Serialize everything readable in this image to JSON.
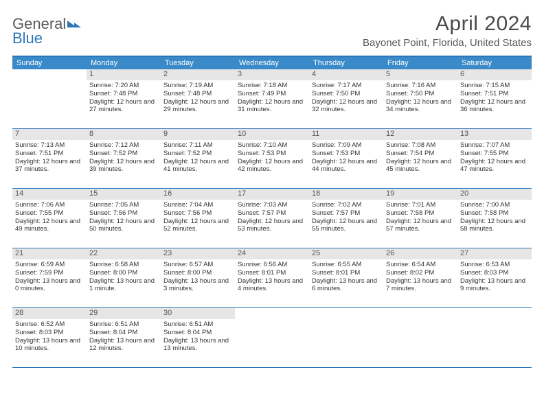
{
  "logo": {
    "word1": "General",
    "word2": "Blue"
  },
  "title": "April 2024",
  "location": "Bayonet Point, Florida, United States",
  "colors": {
    "header_band": "#3a8ac9",
    "border": "#2a76b8",
    "daynum_bg": "#e6e6e6",
    "text": "#333333",
    "logo_gray": "#5a5a5a"
  },
  "dow": [
    "Sunday",
    "Monday",
    "Tuesday",
    "Wednesday",
    "Thursday",
    "Friday",
    "Saturday"
  ],
  "weeks": [
    [
      {
        "n": "",
        "lines": []
      },
      {
        "n": "1",
        "lines": [
          "Sunrise: 7:20 AM",
          "Sunset: 7:48 PM",
          "Daylight: 12 hours and 27 minutes."
        ]
      },
      {
        "n": "2",
        "lines": [
          "Sunrise: 7:19 AM",
          "Sunset: 7:48 PM",
          "Daylight: 12 hours and 29 minutes."
        ]
      },
      {
        "n": "3",
        "lines": [
          "Sunrise: 7:18 AM",
          "Sunset: 7:49 PM",
          "Daylight: 12 hours and 31 minutes."
        ]
      },
      {
        "n": "4",
        "lines": [
          "Sunrise: 7:17 AM",
          "Sunset: 7:50 PM",
          "Daylight: 12 hours and 32 minutes."
        ]
      },
      {
        "n": "5",
        "lines": [
          "Sunrise: 7:16 AM",
          "Sunset: 7:50 PM",
          "Daylight: 12 hours and 34 minutes."
        ]
      },
      {
        "n": "6",
        "lines": [
          "Sunrise: 7:15 AM",
          "Sunset: 7:51 PM",
          "Daylight: 12 hours and 36 minutes."
        ]
      }
    ],
    [
      {
        "n": "7",
        "lines": [
          "Sunrise: 7:13 AM",
          "Sunset: 7:51 PM",
          "Daylight: 12 hours and 37 minutes."
        ]
      },
      {
        "n": "8",
        "lines": [
          "Sunrise: 7:12 AM",
          "Sunset: 7:52 PM",
          "Daylight: 12 hours and 39 minutes."
        ]
      },
      {
        "n": "9",
        "lines": [
          "Sunrise: 7:11 AM",
          "Sunset: 7:52 PM",
          "Daylight: 12 hours and 41 minutes."
        ]
      },
      {
        "n": "10",
        "lines": [
          "Sunrise: 7:10 AM",
          "Sunset: 7:53 PM",
          "Daylight: 12 hours and 42 minutes."
        ]
      },
      {
        "n": "11",
        "lines": [
          "Sunrise: 7:09 AM",
          "Sunset: 7:53 PM",
          "Daylight: 12 hours and 44 minutes."
        ]
      },
      {
        "n": "12",
        "lines": [
          "Sunrise: 7:08 AM",
          "Sunset: 7:54 PM",
          "Daylight: 12 hours and 45 minutes."
        ]
      },
      {
        "n": "13",
        "lines": [
          "Sunrise: 7:07 AM",
          "Sunset: 7:55 PM",
          "Daylight: 12 hours and 47 minutes."
        ]
      }
    ],
    [
      {
        "n": "14",
        "lines": [
          "Sunrise: 7:06 AM",
          "Sunset: 7:55 PM",
          "Daylight: 12 hours and 49 minutes."
        ]
      },
      {
        "n": "15",
        "lines": [
          "Sunrise: 7:05 AM",
          "Sunset: 7:56 PM",
          "Daylight: 12 hours and 50 minutes."
        ]
      },
      {
        "n": "16",
        "lines": [
          "Sunrise: 7:04 AM",
          "Sunset: 7:56 PM",
          "Daylight: 12 hours and 52 minutes."
        ]
      },
      {
        "n": "17",
        "lines": [
          "Sunrise: 7:03 AM",
          "Sunset: 7:57 PM",
          "Daylight: 12 hours and 53 minutes."
        ]
      },
      {
        "n": "18",
        "lines": [
          "Sunrise: 7:02 AM",
          "Sunset: 7:57 PM",
          "Daylight: 12 hours and 55 minutes."
        ]
      },
      {
        "n": "19",
        "lines": [
          "Sunrise: 7:01 AM",
          "Sunset: 7:58 PM",
          "Daylight: 12 hours and 57 minutes."
        ]
      },
      {
        "n": "20",
        "lines": [
          "Sunrise: 7:00 AM",
          "Sunset: 7:58 PM",
          "Daylight: 12 hours and 58 minutes."
        ]
      }
    ],
    [
      {
        "n": "21",
        "lines": [
          "Sunrise: 6:59 AM",
          "Sunset: 7:59 PM",
          "Daylight: 13 hours and 0 minutes."
        ]
      },
      {
        "n": "22",
        "lines": [
          "Sunrise: 6:58 AM",
          "Sunset: 8:00 PM",
          "Daylight: 13 hours and 1 minute."
        ]
      },
      {
        "n": "23",
        "lines": [
          "Sunrise: 6:57 AM",
          "Sunset: 8:00 PM",
          "Daylight: 13 hours and 3 minutes."
        ]
      },
      {
        "n": "24",
        "lines": [
          "Sunrise: 6:56 AM",
          "Sunset: 8:01 PM",
          "Daylight: 13 hours and 4 minutes."
        ]
      },
      {
        "n": "25",
        "lines": [
          "Sunrise: 6:55 AM",
          "Sunset: 8:01 PM",
          "Daylight: 13 hours and 6 minutes."
        ]
      },
      {
        "n": "26",
        "lines": [
          "Sunrise: 6:54 AM",
          "Sunset: 8:02 PM",
          "Daylight: 13 hours and 7 minutes."
        ]
      },
      {
        "n": "27",
        "lines": [
          "Sunrise: 6:53 AM",
          "Sunset: 8:03 PM",
          "Daylight: 13 hours and 9 minutes."
        ]
      }
    ],
    [
      {
        "n": "28",
        "lines": [
          "Sunrise: 6:52 AM",
          "Sunset: 8:03 PM",
          "Daylight: 13 hours and 10 minutes."
        ]
      },
      {
        "n": "29",
        "lines": [
          "Sunrise: 6:51 AM",
          "Sunset: 8:04 PM",
          "Daylight: 13 hours and 12 minutes."
        ]
      },
      {
        "n": "30",
        "lines": [
          "Sunrise: 6:51 AM",
          "Sunset: 8:04 PM",
          "Daylight: 13 hours and 13 minutes."
        ]
      },
      {
        "n": "",
        "lines": []
      },
      {
        "n": "",
        "lines": []
      },
      {
        "n": "",
        "lines": []
      },
      {
        "n": "",
        "lines": []
      }
    ]
  ]
}
